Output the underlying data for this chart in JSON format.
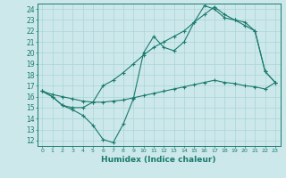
{
  "xlabel": "Humidex (Indice chaleur)",
  "background_color": "#cce8ea",
  "grid_color": "#aad4d8",
  "line_color": "#1a7a6e",
  "xlim": [
    -0.5,
    23.5
  ],
  "ylim": [
    11.5,
    24.5
  ],
  "xticks": [
    0,
    1,
    2,
    3,
    4,
    5,
    6,
    7,
    8,
    9,
    10,
    11,
    12,
    13,
    14,
    15,
    16,
    17,
    18,
    19,
    20,
    21,
    22,
    23
  ],
  "yticks": [
    12,
    13,
    14,
    15,
    16,
    17,
    18,
    19,
    20,
    21,
    22,
    23,
    24
  ],
  "line1_x": [
    0,
    1,
    2,
    3,
    4,
    5,
    6,
    7,
    8,
    9,
    10,
    11,
    12,
    13,
    14,
    15,
    16,
    17,
    18,
    19,
    20,
    21,
    22,
    23
  ],
  "line1_y": [
    16.5,
    16.0,
    15.2,
    14.8,
    14.3,
    13.4,
    12.1,
    11.8,
    13.5,
    15.8,
    20.0,
    21.5,
    20.5,
    20.2,
    21.0,
    22.8,
    24.3,
    24.0,
    23.2,
    23.0,
    22.8,
    22.0,
    18.3,
    17.3
  ],
  "line2_x": [
    0,
    1,
    2,
    3,
    4,
    5,
    6,
    7,
    8,
    9,
    10,
    11,
    12,
    13,
    14,
    15,
    16,
    17,
    18,
    19,
    20,
    21,
    22,
    23
  ],
  "line2_y": [
    16.5,
    16.0,
    15.2,
    15.0,
    15.0,
    15.5,
    17.0,
    17.5,
    18.2,
    19.0,
    19.8,
    20.5,
    21.0,
    21.5,
    22.0,
    22.8,
    23.5,
    24.2,
    23.5,
    23.0,
    22.5,
    22.0,
    18.3,
    17.3
  ],
  "line3_x": [
    0,
    1,
    2,
    3,
    4,
    5,
    6,
    7,
    8,
    9,
    10,
    11,
    12,
    13,
    14,
    15,
    16,
    17,
    18,
    19,
    20,
    21,
    22,
    23
  ],
  "line3_y": [
    16.5,
    16.2,
    16.0,
    15.8,
    15.6,
    15.5,
    15.5,
    15.6,
    15.7,
    15.9,
    16.1,
    16.3,
    16.5,
    16.7,
    16.9,
    17.1,
    17.3,
    17.5,
    17.3,
    17.2,
    17.0,
    16.9,
    16.7,
    17.3
  ]
}
